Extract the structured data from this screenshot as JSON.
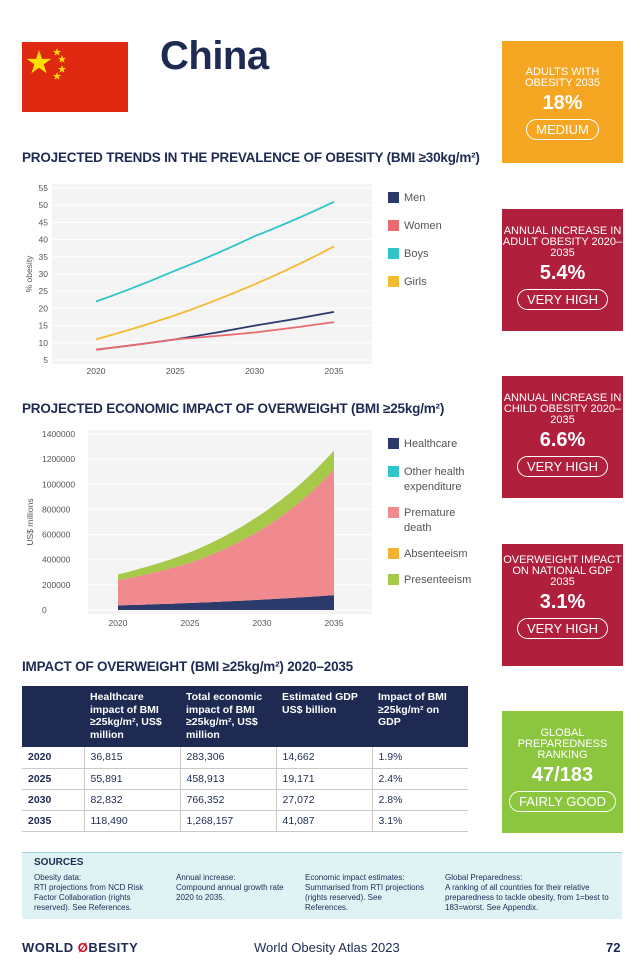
{
  "country": "China",
  "colors": {
    "navy": "#1e2a52",
    "men": "#2b3a6b",
    "women": "#ea6a6f",
    "boys": "#2ec4c8",
    "girls": "#f2bb31",
    "healthcare": "#2b3a6b",
    "other_health": "#2ec4c8",
    "premature_death": "#f08a8e",
    "absenteeism": "#f2b233",
    "presenteeism": "#a6c94a",
    "box_orange": "#f5a623",
    "box_red": "#b0203c",
    "box_green": "#8cc63f"
  },
  "sections": {
    "obesity_title": "PROJECTED TRENDS IN THE PREVALENCE OF OBESITY (BMI ≥30kg/m²)",
    "economic_title": "PROJECTED ECONOMIC IMPACT OF OVERWEIGHT (BMI ≥25kg/m²)",
    "impact_title": "IMPACT OF OVERWEIGHT (BMI ≥25kg/m²) 2020–2035"
  },
  "chart_data": [
    {
      "type": "line",
      "x": [
        2020,
        2025,
        2030,
        2035
      ],
      "ylabel": "% obesity",
      "ylim": [
        5,
        55
      ],
      "yticks": [
        "5",
        "10",
        "15",
        "20",
        "25",
        "30",
        "35",
        "40",
        "45",
        "50",
        "55"
      ],
      "xticks": [
        "2020",
        "2025",
        "2030",
        "2035"
      ],
      "series": [
        {
          "name": "Men",
          "values": [
            8,
            11,
            15,
            19
          ]
        },
        {
          "name": "Women",
          "values": [
            8,
            11,
            13,
            16
          ]
        },
        {
          "name": "Boys",
          "values": [
            22,
            31,
            41,
            51
          ]
        },
        {
          "name": "Girls",
          "values": [
            11,
            18,
            27,
            38
          ]
        }
      ]
    },
    {
      "type": "area",
      "x": [
        2020,
        2025,
        2030,
        2035
      ],
      "ylabel": "US$ millions",
      "ylim": [
        0,
        1400000
      ],
      "yticks": [
        "0",
        "200000",
        "400000",
        "600000",
        "800000",
        "1000000",
        "1200000",
        "1400000"
      ],
      "xticks": [
        "2020",
        "2025",
        "2030",
        "2035"
      ],
      "stacked": true,
      "series": [
        {
          "name": "Healthcare",
          "values": [
            36815,
            55891,
            82832,
            118490
          ]
        },
        {
          "name": "Other health expenditure",
          "values": [
            0,
            0,
            0,
            0
          ]
        },
        {
          "name": "Premature death",
          "values": [
            200000,
            320000,
            560000,
            1000000
          ]
        },
        {
          "name": "Absenteeism",
          "values": [
            0,
            0,
            0,
            0
          ]
        },
        {
          "name": "Presenteeism",
          "values": [
            46491,
            83022,
            123520,
            149667
          ]
        }
      ]
    }
  ],
  "legend_obesity": [
    "Men",
    "Women",
    "Boys",
    "Girls"
  ],
  "legend_economic": [
    "Healthcare",
    "Other health expenditure",
    "Premature death",
    "Absenteeism",
    "Presenteeism"
  ],
  "boxes": [
    {
      "label": "ADULTS WITH OBESITY 2035",
      "value": "18%",
      "pill": "MEDIUM"
    },
    {
      "label": "ANNUAL INCREASE IN ADULT OBESITY 2020–2035",
      "value": "5.4%",
      "pill": "VERY HIGH"
    },
    {
      "label": "ANNUAL INCREASE IN CHILD OBESITY 2020–2035",
      "value": "6.6%",
      "pill": "VERY HIGH"
    },
    {
      "label": "OVERWEIGHT IMPACT ON NATIONAL GDP 2035",
      "value": "3.1%",
      "pill": "VERY HIGH"
    },
    {
      "label": "GLOBAL PREPAREDNESS RANKING",
      "value": "47/183",
      "pill": "FAIRLY GOOD"
    }
  ],
  "table": {
    "headers": [
      "",
      "Healthcare impact of BMI ≥25kg/m², US$ million",
      "Total economic impact of BMI ≥25kg/m², US$ million",
      "Estimated GDP US$ billion",
      "Impact of BMI ≥25kg/m² on GDP"
    ],
    "rows": [
      [
        "2020",
        "36,815",
        "283,306",
        "14,662",
        "1.9%"
      ],
      [
        "2025",
        "55,891",
        "458,913",
        "19,171",
        "2.4%"
      ],
      [
        "2030",
        "82,832",
        "766,352",
        "27,072",
        "2.8%"
      ],
      [
        "2035",
        "118,490",
        "1,268,157",
        "41,087",
        "3.1%"
      ]
    ]
  },
  "sources": {
    "title": "SOURCES",
    "items": [
      {
        "head": "Obesity data:",
        "body": "RTI projections from NCD Risk Factor Collaboration (rights reserved). See References."
      },
      {
        "head": "Annual increase:",
        "body": "Compound annual growth rate 2020 to 2035."
      },
      {
        "head": "Economic impact estimates:",
        "body": "Summarised from RTI projections (rights reserved). See References."
      },
      {
        "head": "Global Preparedness:",
        "body": "A ranking of all countries for their relative preparedness to tackle obesity, from 1=best to 183=worst. See Appendix."
      }
    ]
  },
  "footer": {
    "logo_left": "WORLD ",
    "logo_slash": "Ø",
    "logo_right": "BESITY",
    "center": "World Obesity Atlas 2023",
    "page": "72"
  }
}
